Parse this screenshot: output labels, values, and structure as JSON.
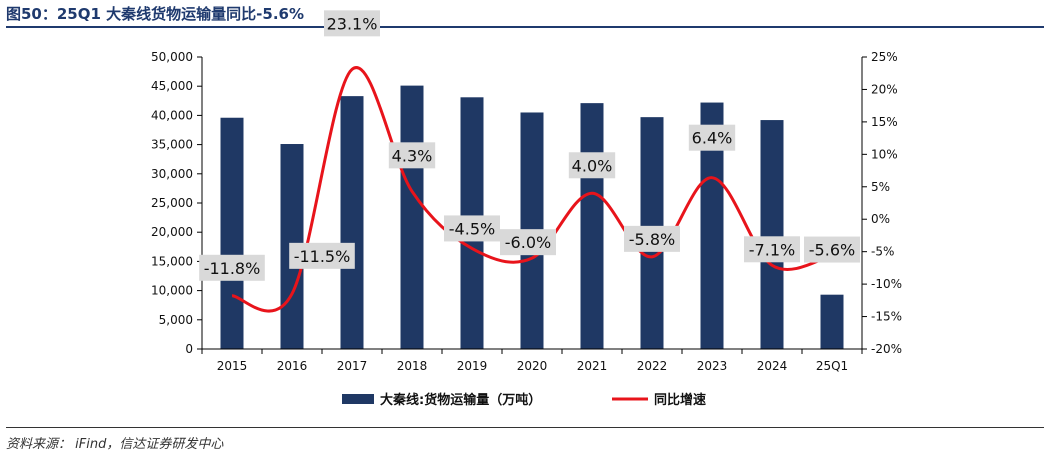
{
  "header": {
    "title": "图50：25Q1 大秦线货物运输量同比-5.6%"
  },
  "footer": {
    "source": "资料来源：  iFind，信达证券研发中心"
  },
  "chart_data": {
    "type": "bar",
    "categories": [
      "2015",
      "2016",
      "2017",
      "2018",
      "2019",
      "2020",
      "2021",
      "2022",
      "2023",
      "2024",
      "25Q1"
    ],
    "series": [
      {
        "name": "大秦线:货物运输量（万吨）",
        "type": "bar",
        "axis": "left",
        "color": "#1f3864",
        "values": [
          39600,
          35100,
          43300,
          45100,
          43100,
          40500,
          42100,
          39700,
          42200,
          39200,
          9300
        ]
      },
      {
        "name": "同比增速",
        "type": "line",
        "axis": "right",
        "color": "#e8141b",
        "values": [
          -11.8,
          -11.5,
          23.1,
          4.3,
          -4.5,
          -6.0,
          4.0,
          -5.8,
          6.4,
          -7.1,
          -5.6
        ],
        "labels": [
          "-11.8%",
          "-11.5%",
          "23.1%",
          "4.3%",
          "-4.5%",
          "-6.0%",
          "4.0%",
          "-5.8%",
          "6.4%",
          "-7.1%",
          "-5.6%"
        ]
      }
    ],
    "y_left": {
      "ylim": [
        0,
        50000
      ],
      "ticks": [
        0,
        5000,
        10000,
        15000,
        20000,
        25000,
        30000,
        35000,
        40000,
        45000,
        50000
      ],
      "tick_labels": [
        "0",
        "5,000",
        "10,000",
        "15,000",
        "20,000",
        "25,000",
        "30,000",
        "35,000",
        "40,000",
        "45,000",
        "50,000"
      ]
    },
    "y_right": {
      "ylim": [
        -20,
        25
      ],
      "ticks": [
        -20,
        -15,
        -10,
        -5,
        0,
        5,
        10,
        15,
        20,
        25
      ],
      "tick_labels": [
        "-20%",
        "-15%",
        "-10%",
        "-5%",
        "0%",
        "5%",
        "10%",
        "15%",
        "20%",
        "25%"
      ]
    },
    "label_box_color": "#d9d9d9",
    "legend_position": "bottom",
    "grid": false,
    "xlabel": "",
    "ylabel": ""
  }
}
